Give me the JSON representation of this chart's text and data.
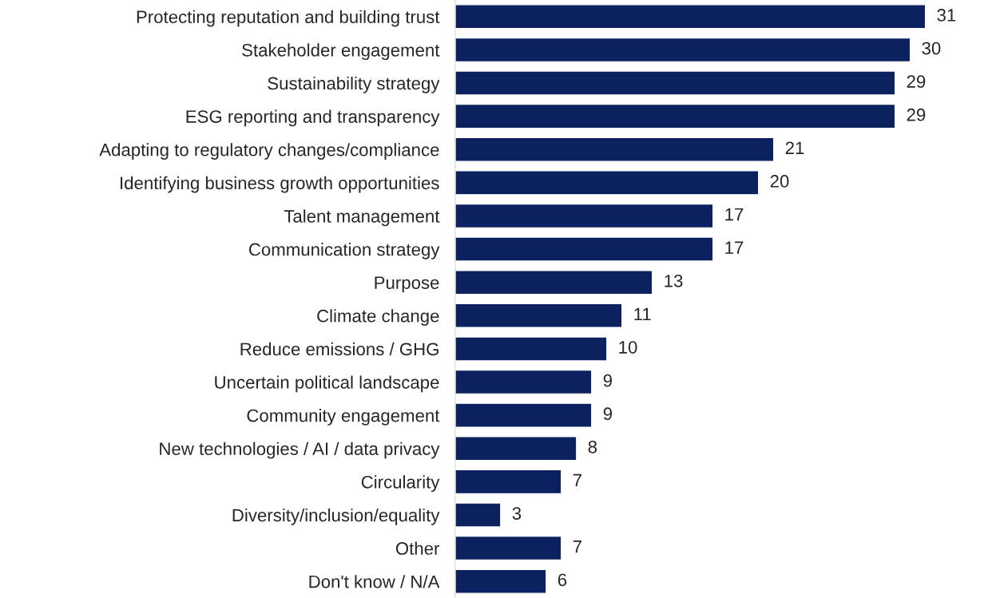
{
  "chart_data": {
    "type": "bar",
    "orientation": "horizontal",
    "categories": [
      "Protecting reputation and building trust",
      "Stakeholder engagement",
      "Sustainability strategy",
      "ESG reporting and transparency",
      "Adapting to regulatory changes/compliance",
      "Identifying business growth opportunities",
      "Talent management",
      "Communication strategy",
      "Purpose",
      "Climate change",
      "Reduce emissions / GHG",
      "Uncertain political landscape",
      "Community engagement",
      "New technologies / AI / data privacy",
      "Circularity",
      "Diversity/inclusion/equality",
      "Other",
      "Don't know / N/A"
    ],
    "values": [
      31,
      30,
      29,
      29,
      21,
      20,
      17,
      17,
      13,
      11,
      10,
      9,
      9,
      8,
      7,
      3,
      7,
      6
    ],
    "color": "#0c2260",
    "data_labels": true,
    "grid": false,
    "legend": false,
    "tick_labels": "y"
  }
}
